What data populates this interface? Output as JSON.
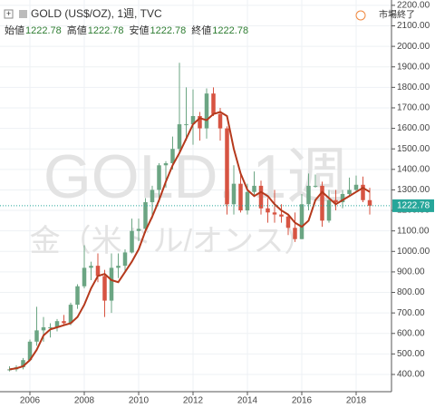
{
  "chart_data": {
    "type": "candlestick",
    "title": "GOLD (US$/OZ), 1週, TVC",
    "status": "市場終了",
    "watermark": "GOLD, 1週",
    "watermark_subtitle": "金（米ドル/オンス）",
    "ohlc_legend": [
      {
        "label": "始値",
        "value": 1222.78
      },
      {
        "label": "高値",
        "value": 1222.78
      },
      {
        "label": "安値",
        "value": 1222.78
      },
      {
        "label": "終値",
        "value": 1222.78
      }
    ],
    "last_price": 1222.78,
    "last_price_color": "#26a69a",
    "up_color": "#6ba583",
    "down_color": "#d75442",
    "x": [
      2005.25,
      2005.5,
      2005.75,
      2006,
      2006.25,
      2006.5,
      2006.75,
      2007,
      2007.25,
      2007.5,
      2007.75,
      2008,
      2008.25,
      2008.5,
      2008.75,
      2009,
      2009.25,
      2009.5,
      2009.75,
      2010,
      2010.25,
      2010.5,
      2010.75,
      2011,
      2011.25,
      2011.5,
      2011.75,
      2012,
      2012.25,
      2012.5,
      2012.75,
      2013,
      2013.25,
      2013.5,
      2013.75,
      2014,
      2014.25,
      2014.5,
      2014.75,
      2015,
      2015.25,
      2015.5,
      2015.75,
      2016,
      2016.25,
      2016.5,
      2016.75,
      2017,
      2017.25,
      2017.5,
      2017.75,
      2018,
      2018.25,
      2018.5
    ],
    "open": [
      420,
      425,
      435,
      470,
      560,
      615,
      630,
      630,
      660,
      650,
      740,
      830,
      920,
      930,
      880,
      760,
      920,
      930,
      995,
      1100,
      1110,
      1240,
      1300,
      1420,
      1430,
      1500,
      1620,
      1620,
      1660,
      1600,
      1770,
      1670,
      1600,
      1230,
      1330,
      1200,
      1290,
      1320,
      1210,
      1190,
      1180,
      1170,
      1115,
      1060,
      1230,
      1320,
      1320,
      1150,
      1250,
      1240,
      1280,
      1300,
      1325,
      1250
    ],
    "high": [
      440,
      445,
      480,
      570,
      730,
      680,
      650,
      670,
      690,
      750,
      840,
      1030,
      950,
      990,
      910,
      990,
      990,
      1010,
      1160,
      1160,
      1260,
      1320,
      1430,
      1440,
      1560,
      1920,
      1800,
      1790,
      1680,
      1795,
      1800,
      1700,
      1610,
      1420,
      1380,
      1330,
      1390,
      1345,
      1260,
      1300,
      1230,
      1180,
      1190,
      1280,
      1380,
      1375,
      1340,
      1300,
      1300,
      1300,
      1360,
      1370,
      1365,
      1310
    ],
    "low": [
      415,
      415,
      425,
      465,
      540,
      560,
      580,
      610,
      640,
      640,
      720,
      820,
      860,
      850,
      680,
      700,
      870,
      900,
      990,
      1050,
      1090,
      1160,
      1240,
      1310,
      1400,
      1480,
      1540,
      1520,
      1540,
      1550,
      1660,
      1540,
      1180,
      1180,
      1190,
      1180,
      1270,
      1180,
      1140,
      1140,
      1140,
      1080,
      1046,
      1060,
      1200,
      1310,
      1120,
      1140,
      1200,
      1210,
      1270,
      1290,
      1240,
      1180
    ],
    "close": [
      425,
      435,
      470,
      560,
      615,
      630,
      630,
      660,
      650,
      740,
      830,
      920,
      930,
      880,
      760,
      920,
      930,
      995,
      1100,
      1110,
      1240,
      1300,
      1420,
      1430,
      1500,
      1620,
      1620,
      1660,
      1600,
      1770,
      1670,
      1600,
      1230,
      1330,
      1200,
      1290,
      1320,
      1210,
      1190,
      1180,
      1170,
      1115,
      1060,
      1230,
      1320,
      1320,
      1150,
      1250,
      1240,
      1280,
      1300,
      1325,
      1250,
      1222.78
    ],
    "moving_average": {
      "color": "#b5391c",
      "values": [
        425,
        430,
        440,
        470,
        520,
        590,
        620,
        630,
        640,
        650,
        680,
        740,
        820,
        880,
        890,
        860,
        850,
        900,
        950,
        1010,
        1100,
        1170,
        1250,
        1340,
        1420,
        1480,
        1550,
        1620,
        1650,
        1640,
        1670,
        1680,
        1660,
        1500,
        1380,
        1300,
        1270,
        1290,
        1270,
        1230,
        1200,
        1180,
        1140,
        1120,
        1150,
        1250,
        1290,
        1260,
        1230,
        1250,
        1270,
        1290,
        1310,
        1290
      ]
    },
    "xlim": [
      2004.9,
      2019.3
    ],
    "xticks": [
      2006,
      2008,
      2010,
      2012,
      2014,
      2016,
      2018
    ],
    "ylim": [
      316,
      2226
    ],
    "yticks": [
      {
        "value": 400,
        "label": "400.00"
      },
      {
        "value": 500,
        "label": "500.00"
      },
      {
        "value": 600,
        "label": "600.00"
      },
      {
        "value": 700,
        "label": "700.00"
      },
      {
        "value": 800,
        "label": "800.00"
      },
      {
        "value": 900,
        "label": "900.00"
      },
      {
        "value": 1000,
        "label": "1000.00"
      },
      {
        "value": 1100,
        "label": "1100.00"
      },
      {
        "value": 1200,
        "label": "1200.00"
      },
      {
        "value": 1300,
        "label": "1300.00"
      },
      {
        "value": 1400,
        "label": "1400.00"
      },
      {
        "value": 1500,
        "label": "1500.00"
      },
      {
        "value": 1600,
        "label": "1600.00"
      },
      {
        "value": 1700,
        "label": "1700.00"
      },
      {
        "value": 1800,
        "label": "1800.00"
      },
      {
        "value": 1900,
        "label": "1900.00"
      },
      {
        "value": 2000,
        "label": "2000.00"
      },
      {
        "value": 2100,
        "label": "2100.00"
      },
      {
        "value": 2200,
        "label": "2200.00"
      }
    ],
    "grid": true
  }
}
